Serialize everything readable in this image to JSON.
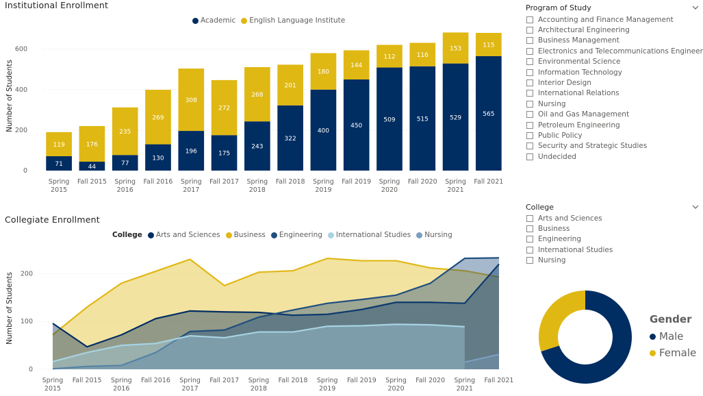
{
  "colors": {
    "navy": "#002d62",
    "gold": "#e0b814",
    "engineering": "#1f4e7f",
    "intl": "#a7d3e3",
    "nursing": "#7b9ec0",
    "axis_text": "#605e5c",
    "grid": "#e1dfdd"
  },
  "institutional": {
    "title": "Institutional Enrollment",
    "legend": [
      {
        "label": "Academic",
        "color": "#002d62"
      },
      {
        "label": "English Language Institute",
        "color": "#e0b814"
      }
    ]
  },
  "collegiate": {
    "title": "Collegiate Enrollment",
    "legend_title": "College",
    "legend": [
      {
        "label": "Arts and Sciences",
        "color": "#002d62"
      },
      {
        "label": "Business",
        "color": "#e0b814"
      },
      {
        "label": "Engineering",
        "color": "#1f4e7f"
      },
      {
        "label": "International Studies",
        "color": "#a7d3e3"
      },
      {
        "label": "Nursing",
        "color": "#7b9ec0"
      }
    ]
  },
  "chart_data": [
    {
      "type": "bar",
      "stacked": true,
      "title": "Institutional Enrollment",
      "ylabel": "Number of Students",
      "xlabel": "",
      "ylim": [
        0,
        680
      ],
      "yticks": [
        0,
        200,
        400,
        600
      ],
      "grid": true,
      "legend_position": "top-center",
      "categories": [
        "Spring 2015",
        "Fall 2015",
        "Spring 2016",
        "Fall 2016",
        "Spring 2017",
        "Fall 2017",
        "Spring 2018",
        "Fall 2018",
        "Spring 2019",
        "Fall 2019",
        "Spring 2020",
        "Fall 2020",
        "Spring 2021",
        "Fall 2021"
      ],
      "series": [
        {
          "name": "Academic",
          "color": "#002d62",
          "values": [
            71,
            44,
            77,
            130,
            196,
            175,
            243,
            322,
            400,
            450,
            509,
            515,
            529,
            565
          ]
        },
        {
          "name": "English Language Institute",
          "color": "#e0b814",
          "values": [
            119,
            176,
            235,
            269,
            308,
            272,
            268,
            201,
            180,
            144,
            112,
            116,
            153,
            115
          ]
        }
      ]
    },
    {
      "type": "area",
      "title": "Collegiate Enrollment",
      "ylabel": "Number of Students",
      "xlabel": "",
      "ylim": [
        0,
        245
      ],
      "yticks": [
        0,
        100,
        200
      ],
      "grid": true,
      "legend_position": "top-center",
      "categories": [
        "Spring 2015",
        "Fall 2015",
        "Spring 2016",
        "Fall 2016",
        "Spring 2017",
        "Fall 2017",
        "Spring 2018",
        "Fall 2018",
        "Spring 2019",
        "Fall 2019",
        "Spring 2020",
        "Fall 2020",
        "Spring 2021",
        "Fall 2021"
      ],
      "series": [
        {
          "name": "Business",
          "color": "#e0b814",
          "values": [
            72,
            130,
            180,
            205,
            230,
            175,
            203,
            206,
            232,
            227,
            227,
            212,
            206,
            193
          ]
        },
        {
          "name": "Arts and Sciences",
          "color": "#002d62",
          "values": [
            96,
            47,
            72,
            106,
            122,
            120,
            119,
            113,
            115,
            125,
            140,
            140,
            138,
            220
          ]
        },
        {
          "name": "Engineering",
          "color": "#1f4e7f",
          "values": [
            1,
            6,
            8,
            35,
            79,
            82,
            109,
            124,
            138,
            146,
            155,
            180,
            232,
            233
          ]
        },
        {
          "name": "International Studies",
          "color": "#a7d3e3",
          "values": [
            16,
            35,
            50,
            54,
            70,
            66,
            78,
            78,
            90,
            91,
            94,
            93,
            89,
            null
          ]
        },
        {
          "name": "Nursing",
          "color": "#7b9ec0",
          "values": [
            null,
            null,
            null,
            null,
            null,
            null,
            null,
            null,
            null,
            null,
            null,
            null,
            15,
            31
          ]
        }
      ]
    },
    {
      "type": "pie",
      "donut": true,
      "title": "Gender",
      "legend_position": "right",
      "categories": [
        "Male",
        "Female"
      ],
      "values": [
        70,
        30
      ],
      "colors": [
        "#002d62",
        "#e0b814"
      ]
    }
  ],
  "program_slicer": {
    "title": "Program of Study",
    "items": [
      "Accounting and Finance Management",
      "Architectural Engineering",
      "Business Management",
      "Electronics and Telecommunications Engineering",
      "Environmental Science",
      "Information Technology",
      "Interior Design",
      "International Relations",
      "Nursing",
      "Oil and Gas Management",
      "Petroleum Engineering",
      "Public Policy",
      "Security and Strategic Studies",
      "Undecided"
    ]
  },
  "college_slicer": {
    "title": "College",
    "items": [
      "Arts and Sciences",
      "Business",
      "Engineering",
      "International Studies",
      "Nursing"
    ]
  },
  "gender_legend": {
    "title": "Gender",
    "items": [
      {
        "label": "Male",
        "color": "#002d62"
      },
      {
        "label": "Female",
        "color": "#e0b814"
      }
    ]
  }
}
